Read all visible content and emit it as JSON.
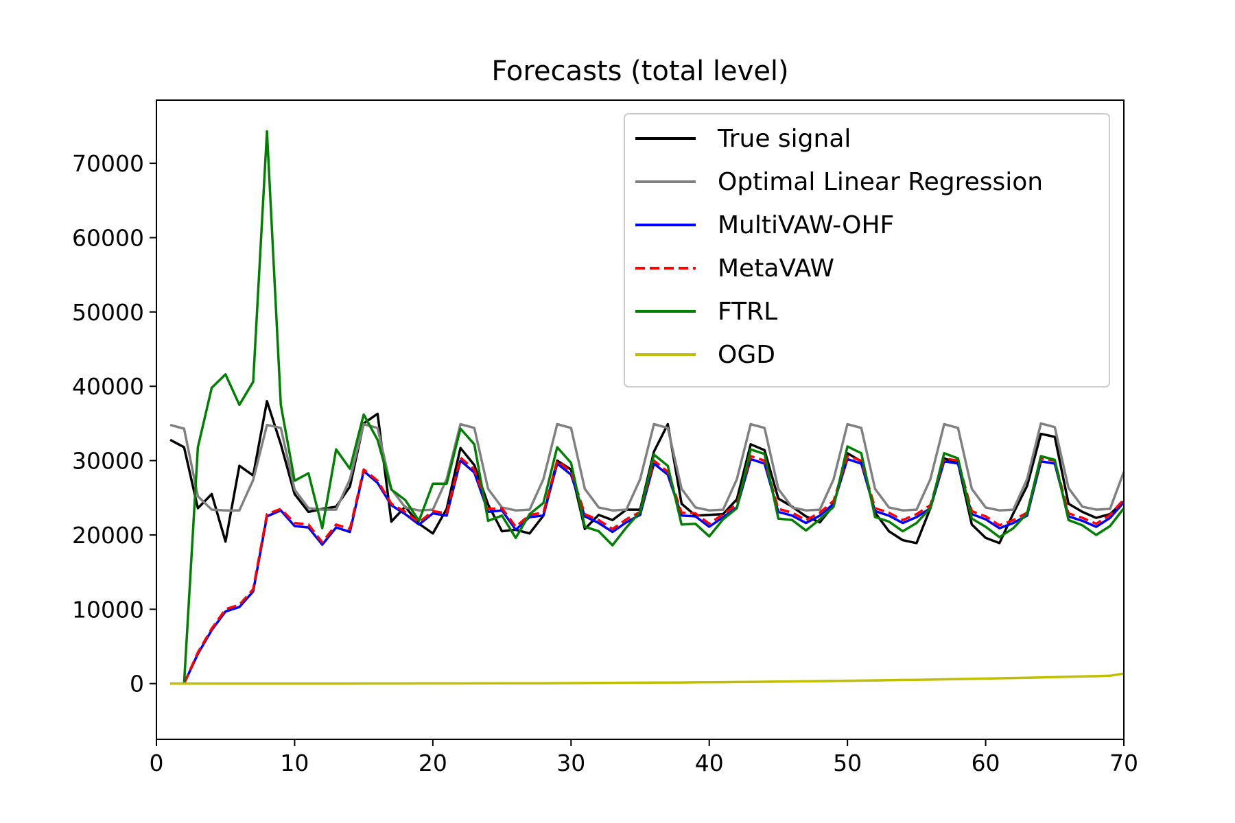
{
  "chart_data": {
    "type": "line",
    "title": "Forecasts (total level)",
    "xlabel": "",
    "ylabel": "",
    "xlim": [
      0,
      70
    ],
    "ylim": [
      -7500,
      78500
    ],
    "xticks": [
      0,
      10,
      20,
      30,
      40,
      50,
      60,
      70
    ],
    "yticks": [
      0,
      10000,
      20000,
      30000,
      40000,
      50000,
      60000,
      70000
    ],
    "grid": false,
    "legend_position": "top-right",
    "x": [
      1,
      2,
      3,
      4,
      5,
      6,
      7,
      8,
      9,
      10,
      11,
      12,
      13,
      14,
      15,
      16,
      17,
      18,
      19,
      20,
      21,
      22,
      23,
      24,
      25,
      26,
      27,
      28,
      29,
      30,
      31,
      32,
      33,
      34,
      35,
      36,
      37,
      38,
      39,
      40,
      41,
      42,
      43,
      44,
      45,
      46,
      47,
      48,
      49,
      50,
      51,
      52,
      53,
      54,
      55,
      56,
      57,
      58,
      59,
      60,
      61,
      62,
      63,
      64,
      65,
      66,
      67,
      68,
      69,
      70
    ],
    "series": [
      {
        "name": "True signal",
        "color": "#000000",
        "dash": "solid",
        "values": [
          32800,
          31800,
          23600,
          25500,
          19100,
          29300,
          28000,
          38000,
          32200,
          25500,
          23100,
          23500,
          23800,
          26500,
          35000,
          36300,
          21800,
          23800,
          21500,
          20200,
          23500,
          31700,
          29400,
          24100,
          20500,
          20700,
          20200,
          22600,
          30000,
          28800,
          20800,
          22700,
          22000,
          23400,
          23400,
          31200,
          34900,
          24200,
          22600,
          22700,
          22800,
          24800,
          32200,
          31400,
          24900,
          23800,
          22500,
          21700,
          24000,
          31000,
          29900,
          23000,
          20500,
          19300,
          18900,
          23600,
          30300,
          29700,
          21400,
          19600,
          18900,
          22900,
          26600,
          33600,
          33200,
          24200,
          23100,
          22300,
          22800,
          24500
        ]
      },
      {
        "name": "Optimal Linear Regression",
        "color": "#808080",
        "dash": "solid",
        "values": [
          34800,
          34300,
          25200,
          23400,
          23300,
          23300,
          27400,
          34800,
          34400,
          26100,
          23600,
          23400,
          23400,
          27500,
          34900,
          34400,
          26200,
          23700,
          23300,
          23400,
          27500,
          34900,
          34400,
          26200,
          23700,
          23300,
          23400,
          27500,
          34900,
          34400,
          26200,
          23700,
          23300,
          23400,
          27500,
          34900,
          34400,
          26200,
          23700,
          23300,
          23400,
          27500,
          34900,
          34400,
          26200,
          23700,
          23300,
          23400,
          27500,
          34900,
          34400,
          26200,
          23700,
          23300,
          23400,
          27500,
          34900,
          34400,
          26200,
          23700,
          23300,
          23400,
          27500,
          35000,
          34500,
          26300,
          23800,
          23400,
          23500,
          28500
        ]
      },
      {
        "name": "MultiVAW-OHF",
        "color": "#0000ff",
        "dash": "solid",
        "values": [
          0,
          0,
          4000,
          7200,
          9700,
          10300,
          12400,
          22500,
          23300,
          21200,
          21000,
          18700,
          21000,
          20400,
          28600,
          27000,
          24000,
          22800,
          21400,
          22900,
          22600,
          30000,
          28400,
          23100,
          23300,
          20700,
          22400,
          22600,
          29600,
          28100,
          22500,
          21600,
          20400,
          21700,
          22700,
          29600,
          28100,
          22600,
          22500,
          21100,
          22400,
          23700,
          30200,
          29600,
          23100,
          22600,
          21600,
          22600,
          24200,
          30200,
          29600,
          23200,
          22600,
          21600,
          22400,
          23600,
          29900,
          29600,
          22800,
          22100,
          20900,
          21600,
          22600,
          29900,
          29600,
          22500,
          21900,
          21100,
          22300,
          24400
        ]
      },
      {
        "name": "MetaVAW",
        "color": "#ff0000",
        "dash": "dashed",
        "values": [
          0,
          0,
          4200,
          7400,
          10000,
          10600,
          12700,
          22800,
          23500,
          21600,
          21400,
          19000,
          21400,
          20800,
          28800,
          27300,
          24200,
          23100,
          21700,
          23200,
          22900,
          30400,
          28800,
          23500,
          23600,
          21100,
          22700,
          23000,
          30000,
          28500,
          22800,
          22000,
          20800,
          22100,
          23100,
          30000,
          28500,
          23000,
          22900,
          21500,
          22800,
          24100,
          30600,
          30000,
          23500,
          23000,
          22000,
          23000,
          24600,
          30600,
          30000,
          23600,
          23000,
          22000,
          22800,
          24000,
          30300,
          30000,
          23200,
          22500,
          21300,
          22000,
          23000,
          30300,
          30000,
          22900,
          22300,
          21500,
          22700,
          24800
        ]
      },
      {
        "name": "FTRL",
        "color": "#008000",
        "dash": "solid",
        "values": [
          0,
          0,
          31800,
          39800,
          41600,
          37500,
          40600,
          74300,
          37500,
          27300,
          28300,
          20900,
          31500,
          28900,
          36200,
          32800,
          26100,
          24700,
          21900,
          26900,
          26900,
          34300,
          32200,
          21900,
          22600,
          19600,
          22800,
          24300,
          31800,
          29700,
          21100,
          20500,
          18600,
          21000,
          23100,
          30800,
          29300,
          21400,
          21500,
          19800,
          22100,
          23600,
          31500,
          30900,
          22200,
          22000,
          20600,
          22100,
          23800,
          31900,
          31000,
          22400,
          21800,
          20500,
          21600,
          23600,
          31000,
          30300,
          22200,
          21100,
          19700,
          20900,
          22900,
          30600,
          30100,
          22000,
          21300,
          20000,
          21200,
          23600
        ]
      },
      {
        "name": "OGD",
        "color": "#bfbf00",
        "dash": "solid",
        "values": [
          0,
          0,
          0,
          0,
          0,
          0,
          0,
          0,
          0,
          0,
          0,
          0,
          0,
          0,
          10,
          10,
          10,
          10,
          20,
          20,
          20,
          20,
          30,
          30,
          40,
          40,
          50,
          50,
          60,
          70,
          80,
          90,
          100,
          110,
          120,
          130,
          140,
          150,
          170,
          180,
          200,
          210,
          230,
          250,
          270,
          290,
          310,
          330,
          350,
          380,
          400,
          430,
          460,
          490,
          510,
          540,
          570,
          610,
          640,
          680,
          710,
          750,
          790,
          830,
          870,
          920,
          960,
          1000,
          1050,
          1350
        ]
      }
    ]
  }
}
